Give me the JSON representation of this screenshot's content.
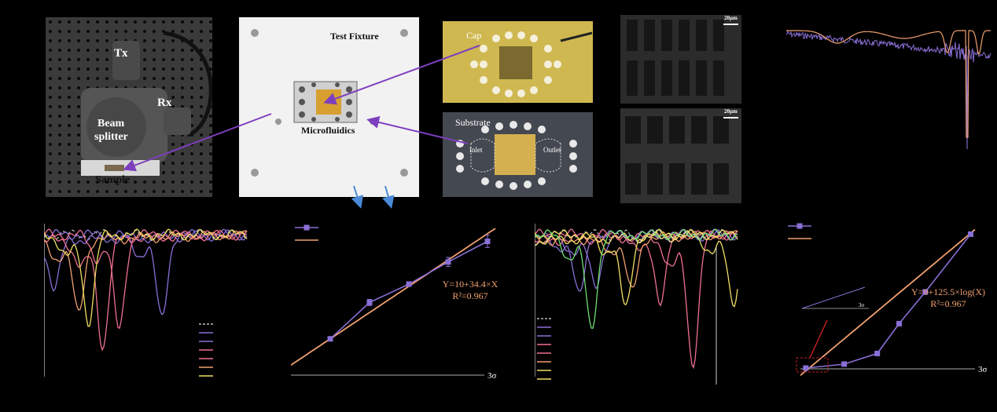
{
  "photos": {
    "setup": {
      "tx": "Tx",
      "rx": "Rx",
      "beam_line1": "Beam",
      "beam_line2": "splitter",
      "sample": "Sample"
    },
    "fixture": {
      "test_fixture": "Test Fixture",
      "microfluidics": "Microfluidics"
    },
    "cap": {
      "cap": "Cap"
    },
    "substrate": {
      "substrate": "Substrate",
      "inlet": "Inlet",
      "outlet": "Outlet"
    },
    "sem": {
      "scale_top": "20μm",
      "scale_bottom": "20μm"
    }
  },
  "colors": {
    "purple": "#8a6fd6",
    "orange": "#f0a070",
    "gray_dash": "#bbbbbb",
    "pink": "#f07090",
    "yellow": "#f0e060",
    "green": "#70e070",
    "axis": "#ffffff"
  },
  "chart_data": [
    {
      "type": "line",
      "title": "",
      "series": [
        {
          "color": "#8a6fd6",
          "style": "jagged"
        },
        {
          "color": "#f0a070",
          "style": "smooth"
        }
      ]
    },
    {
      "type": "line",
      "title": "",
      "series": [
        {
          "color": "#bbbbbb",
          "dip": 0.58,
          "depth": 0.02,
          "dashed": true
        },
        {
          "color": "#8a6fd6",
          "dip": 0.05,
          "depth": 0.35
        },
        {
          "color": "#8a6fd6",
          "dip": 0.58,
          "depth": 0.62
        },
        {
          "color": "#f07090",
          "dip": 0.29,
          "depth": 0.8
        },
        {
          "color": "#f07090",
          "dip": 0.37,
          "depth": 0.7
        },
        {
          "color": "#f0a070",
          "dip": 0.17,
          "depth": 0.55
        },
        {
          "color": "#f0e060",
          "dip": 0.22,
          "depth": 0.65
        }
      ]
    },
    {
      "type": "scatter",
      "title": "",
      "fit_label": "Y=10+34.4×X",
      "r2_label": "R²=0.967",
      "threshold_label": "3σ",
      "points": [
        {
          "x": 1,
          "y": 44.4,
          "err": 1
        },
        {
          "x": 2,
          "y": 92,
          "err": 4
        },
        {
          "x": 3,
          "y": 116,
          "err": 3
        },
        {
          "x": 4,
          "y": 145,
          "err": 6
        },
        {
          "x": 5,
          "y": 172,
          "err": 8
        }
      ],
      "fit": {
        "intercept": 10,
        "slope": 34.4
      },
      "threshold_y": 10,
      "xlim": [
        0,
        5.2
      ],
      "ylim": [
        0,
        190
      ]
    },
    {
      "type": "line",
      "title": "",
      "series": [
        {
          "color": "#bbbbbb",
          "dip": 0.5,
          "depth": 0.02,
          "dashed": true
        },
        {
          "color": "#8a6fd6",
          "dip": 0.3,
          "depth": 0.35
        },
        {
          "color": "#8a6fd6",
          "dip": 0.22,
          "depth": 0.45
        },
        {
          "color": "#f07090",
          "dip": 0.78,
          "depth": 0.95
        },
        {
          "color": "#f07090",
          "dip": 0.62,
          "depth": 0.5
        },
        {
          "color": "#f0a070",
          "dip": 0.48,
          "depth": 0.4
        },
        {
          "color": "#f0e060",
          "dip": 0.45,
          "depth": 0.55
        },
        {
          "color": "#f0e060",
          "dip": 0.98,
          "depth": 0.5
        },
        {
          "color": "#70e070",
          "dip": 0.28,
          "depth": 0.7
        }
      ]
    },
    {
      "type": "scatter",
      "title": "",
      "fit_label": "Y=9+125.5×log(X)",
      "r2_label": "R²=0.967",
      "threshold_label": "3σ",
      "inset_label": "3σ",
      "points": [
        {
          "x": 0.001,
          "y": 3
        },
        {
          "x": 0.005,
          "y": 9
        },
        {
          "x": 0.02,
          "y": 25
        },
        {
          "x": 0.05,
          "y": 70
        },
        {
          "x": 0.15,
          "y": 118
        },
        {
          "x": 1,
          "y": 205
        }
      ],
      "fit": {
        "intercept": 9,
        "slope": 125.5,
        "log": true
      },
      "xlim": [
        0.0008,
        1.2
      ],
      "ylim": [
        -10,
        215
      ]
    }
  ]
}
